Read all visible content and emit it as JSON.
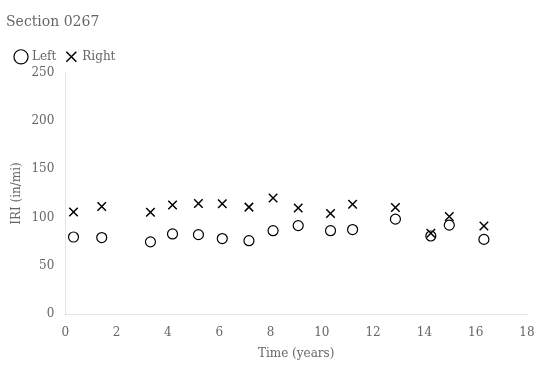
{
  "chart_data": {
    "type": "scatter",
    "title": "Section 0267",
    "x_label": "Time (years)",
    "y_label": "IRI (in/mi)",
    "x": [
      0.32,
      1.42,
      3.32,
      4.18,
      5.19,
      6.12,
      7.16,
      8.1,
      9.08,
      10.34,
      11.2,
      12.87,
      14.25,
      14.97,
      16.32
    ],
    "series": [
      {
        "name": "Left",
        "color": "black",
        "marker": "open_circle",
        "values": [
          79.93,
          79.4,
          74.92,
          83.12,
          82.37,
          78.37,
          76.13,
          86.49,
          91.76,
          86.48,
          87.65,
          98.45,
          80.98,
          92.24,
          77.47
        ]
      },
      {
        "name": "Right",
        "color": "black",
        "marker": "x",
        "values": [
          105.87,
          111.55,
          105.66,
          113.04,
          114.65,
          114.43,
          110.9,
          120.41,
          109.98,
          104.29,
          113.82,
          110.44,
          83.77,
          101.17,
          91.39
        ]
      }
    ],
    "xlim": [
      0,
      18
    ],
    "ylim": [
      0,
      250
    ],
    "xticks": [
      0,
      2,
      4,
      6,
      8,
      10,
      12,
      14,
      16,
      18
    ],
    "yticks": [
      0,
      50,
      100,
      150,
      200,
      250
    ],
    "legend": "upper left",
    "grid": false
  }
}
